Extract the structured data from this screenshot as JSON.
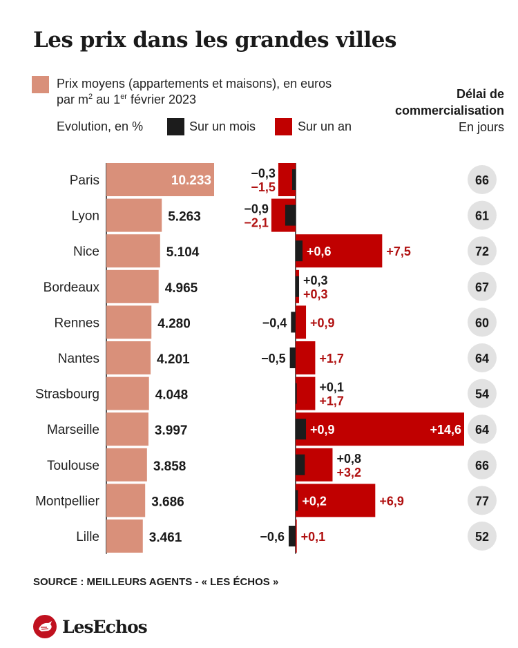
{
  "title": "Les prix dans les grandes villes",
  "legend": {
    "price_line1": "Prix moyens (appartements et maisons), en euros",
    "price_line2_a": "par m",
    "price_line2_sup1": "2",
    "price_line2_b": " au 1",
    "price_line2_sup2": "er",
    "price_line2_c": " février 2023",
    "evolution_label": "Evolution, en %",
    "month_label": "Sur un mois",
    "year_label": "Sur un an"
  },
  "delay_header": {
    "line1": "Délai de",
    "line2": "commercialisation",
    "line3": "En jours"
  },
  "colors": {
    "price": "#d9907a",
    "month": "#1c1c1c",
    "year": "#c00000",
    "year_text": "#b01010",
    "circle": "#e2e2e2",
    "axis": "#1a1a1a"
  },
  "chart_data": [
    {
      "type": "bar",
      "orientation": "horizontal",
      "categories": [
        "Paris",
        "Lyon",
        "Nice",
        "Bordeaux",
        "Rennes",
        "Nantes",
        "Strasbourg",
        "Marseille",
        "Toulouse",
        "Montpellier",
        "Lille"
      ],
      "series": [
        {
          "name": "Prix moyens (appartements et maisons), en euros par m² au 1er février 2023",
          "values": [
            10233,
            5263,
            5104,
            4965,
            4280,
            4201,
            4048,
            3997,
            3858,
            3686,
            3461
          ],
          "labels": [
            "10.233",
            "5.263",
            "5.104",
            "4.965",
            "4.280",
            "4.201",
            "4.048",
            "3.997",
            "3.858",
            "3.686",
            "3.461"
          ]
        }
      ]
    },
    {
      "type": "bar",
      "orientation": "horizontal",
      "categories": [
        "Paris",
        "Lyon",
        "Nice",
        "Bordeaux",
        "Rennes",
        "Nantes",
        "Strasbourg",
        "Marseille",
        "Toulouse",
        "Montpellier",
        "Lille"
      ],
      "series": [
        {
          "name": "Sur un mois",
          "values": [
            -0.3,
            -0.9,
            0.6,
            0.3,
            -0.4,
            -0.5,
            0.1,
            0.9,
            0.8,
            0.2,
            -0.6
          ],
          "labels": [
            "−0,3",
            "−0,9",
            "+0,6",
            "+0,3",
            "−0,4",
            "−0,5",
            "+0,1",
            "+0,9",
            "+0,8",
            "+0,2",
            "−0,6"
          ]
        },
        {
          "name": "Sur un an",
          "values": [
            -1.5,
            -2.1,
            7.5,
            0.3,
            0.9,
            1.7,
            1.7,
            14.6,
            3.2,
            6.9,
            0.1
          ],
          "labels": [
            "−1,5",
            "−2,1",
            "+7,5",
            "+0,3",
            "+0,9",
            "+1,7",
            "+1,7",
            "+14,6",
            "+3,2",
            "+6,9",
            "+0,1"
          ]
        }
      ]
    },
    {
      "type": "table",
      "categories": [
        "Paris",
        "Lyon",
        "Nice",
        "Bordeaux",
        "Rennes",
        "Nantes",
        "Strasbourg",
        "Marseille",
        "Toulouse",
        "Montpellier",
        "Lille"
      ],
      "series": [
        {
          "name": "Délai de commercialisation",
          "values": [
            66,
            61,
            72,
            67,
            60,
            64,
            54,
            64,
            66,
            77,
            52
          ]
        }
      ]
    }
  ],
  "source": "SOURCE : MEILLEURS AGENTS - « LES ÉCHOS »",
  "brand": {
    "name": "LesEchos",
    "logo_icon": "les-echos-rooster-logo"
  }
}
